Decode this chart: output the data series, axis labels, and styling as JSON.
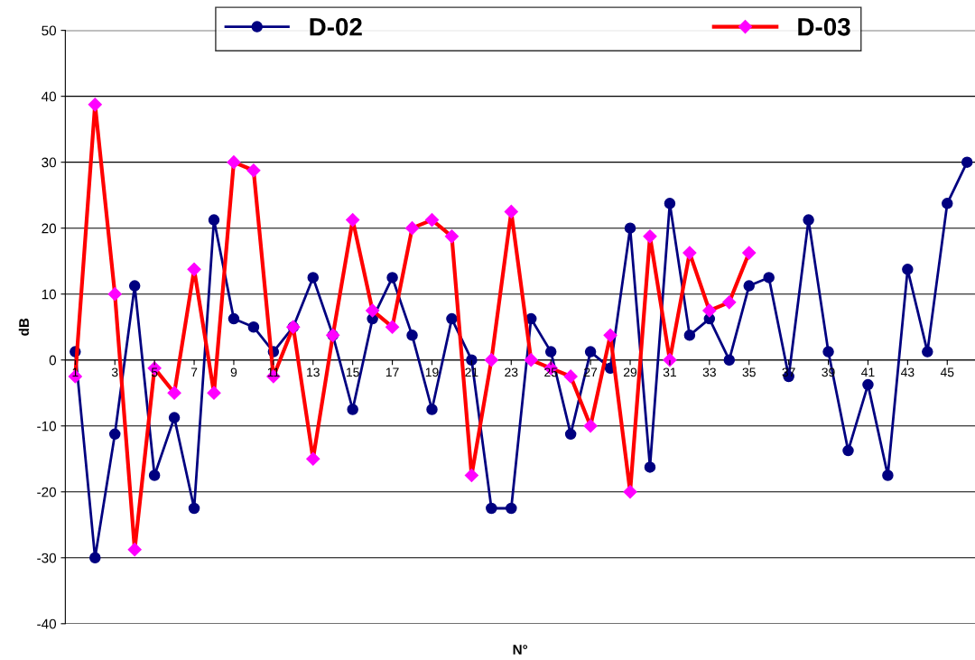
{
  "chart_data": {
    "type": "line",
    "xlabel": "N°",
    "ylabel": "dB",
    "categories": [
      "1",
      null,
      "3",
      null,
      "5",
      null,
      "7",
      null,
      "9",
      null,
      "11",
      null,
      "13",
      null,
      "15",
      null,
      "17",
      null,
      "19",
      null,
      "21",
      null,
      "23",
      null,
      "25",
      null,
      "27",
      null,
      "29",
      null,
      "31",
      null,
      "33",
      null,
      "35",
      null,
      "37",
      null,
      "39",
      null,
      "41",
      null,
      "43",
      null,
      "45",
      null
    ],
    "series": [
      {
        "name": "D-02",
        "color": "#000080",
        "marker": "circle",
        "values": [
          1.25,
          -30,
          -11.25,
          11.25,
          -17.5,
          -8.75,
          -22.5,
          21.25,
          6.25,
          5,
          1.25,
          5,
          12.5,
          3.75,
          -7.5,
          6.25,
          12.5,
          3.75,
          -7.5,
          6.25,
          0,
          -22.5,
          -22.5,
          6.25,
          1.25,
          -11.25,
          1.25,
          -1.25,
          20,
          -16.25,
          23.75,
          3.75,
          6.25,
          0,
          11.25,
          12.5,
          -2.5,
          21.25,
          1.25,
          -13.75,
          -3.75,
          -17.5,
          13.75,
          1.25,
          23.75,
          30
        ]
      },
      {
        "name": "D-03",
        "color": "#ff0000",
        "marker": "diamond",
        "values": [
          -2.5,
          38.75,
          10,
          -28.75,
          -1.25,
          -5,
          13.75,
          -5,
          30,
          28.75,
          -2.5,
          5,
          -15,
          3.75,
          21.25,
          7.5,
          5,
          20,
          21.25,
          18.75,
          -17.5,
          0,
          22.5,
          0,
          -1.25,
          -2.5,
          -10,
          3.75,
          -20,
          18.75,
          0,
          16.25,
          7.5,
          8.75,
          16.25,
          null,
          null,
          null,
          null,
          null,
          null,
          null,
          null,
          null,
          null,
          null
        ]
      }
    ],
    "ylim": [
      -40,
      50
    ],
    "yticks": [
      -40,
      -30,
      -20,
      -10,
      0,
      10,
      20,
      30,
      40,
      50
    ],
    "grid": "y",
    "legend": "top",
    "line_style": "solid"
  }
}
